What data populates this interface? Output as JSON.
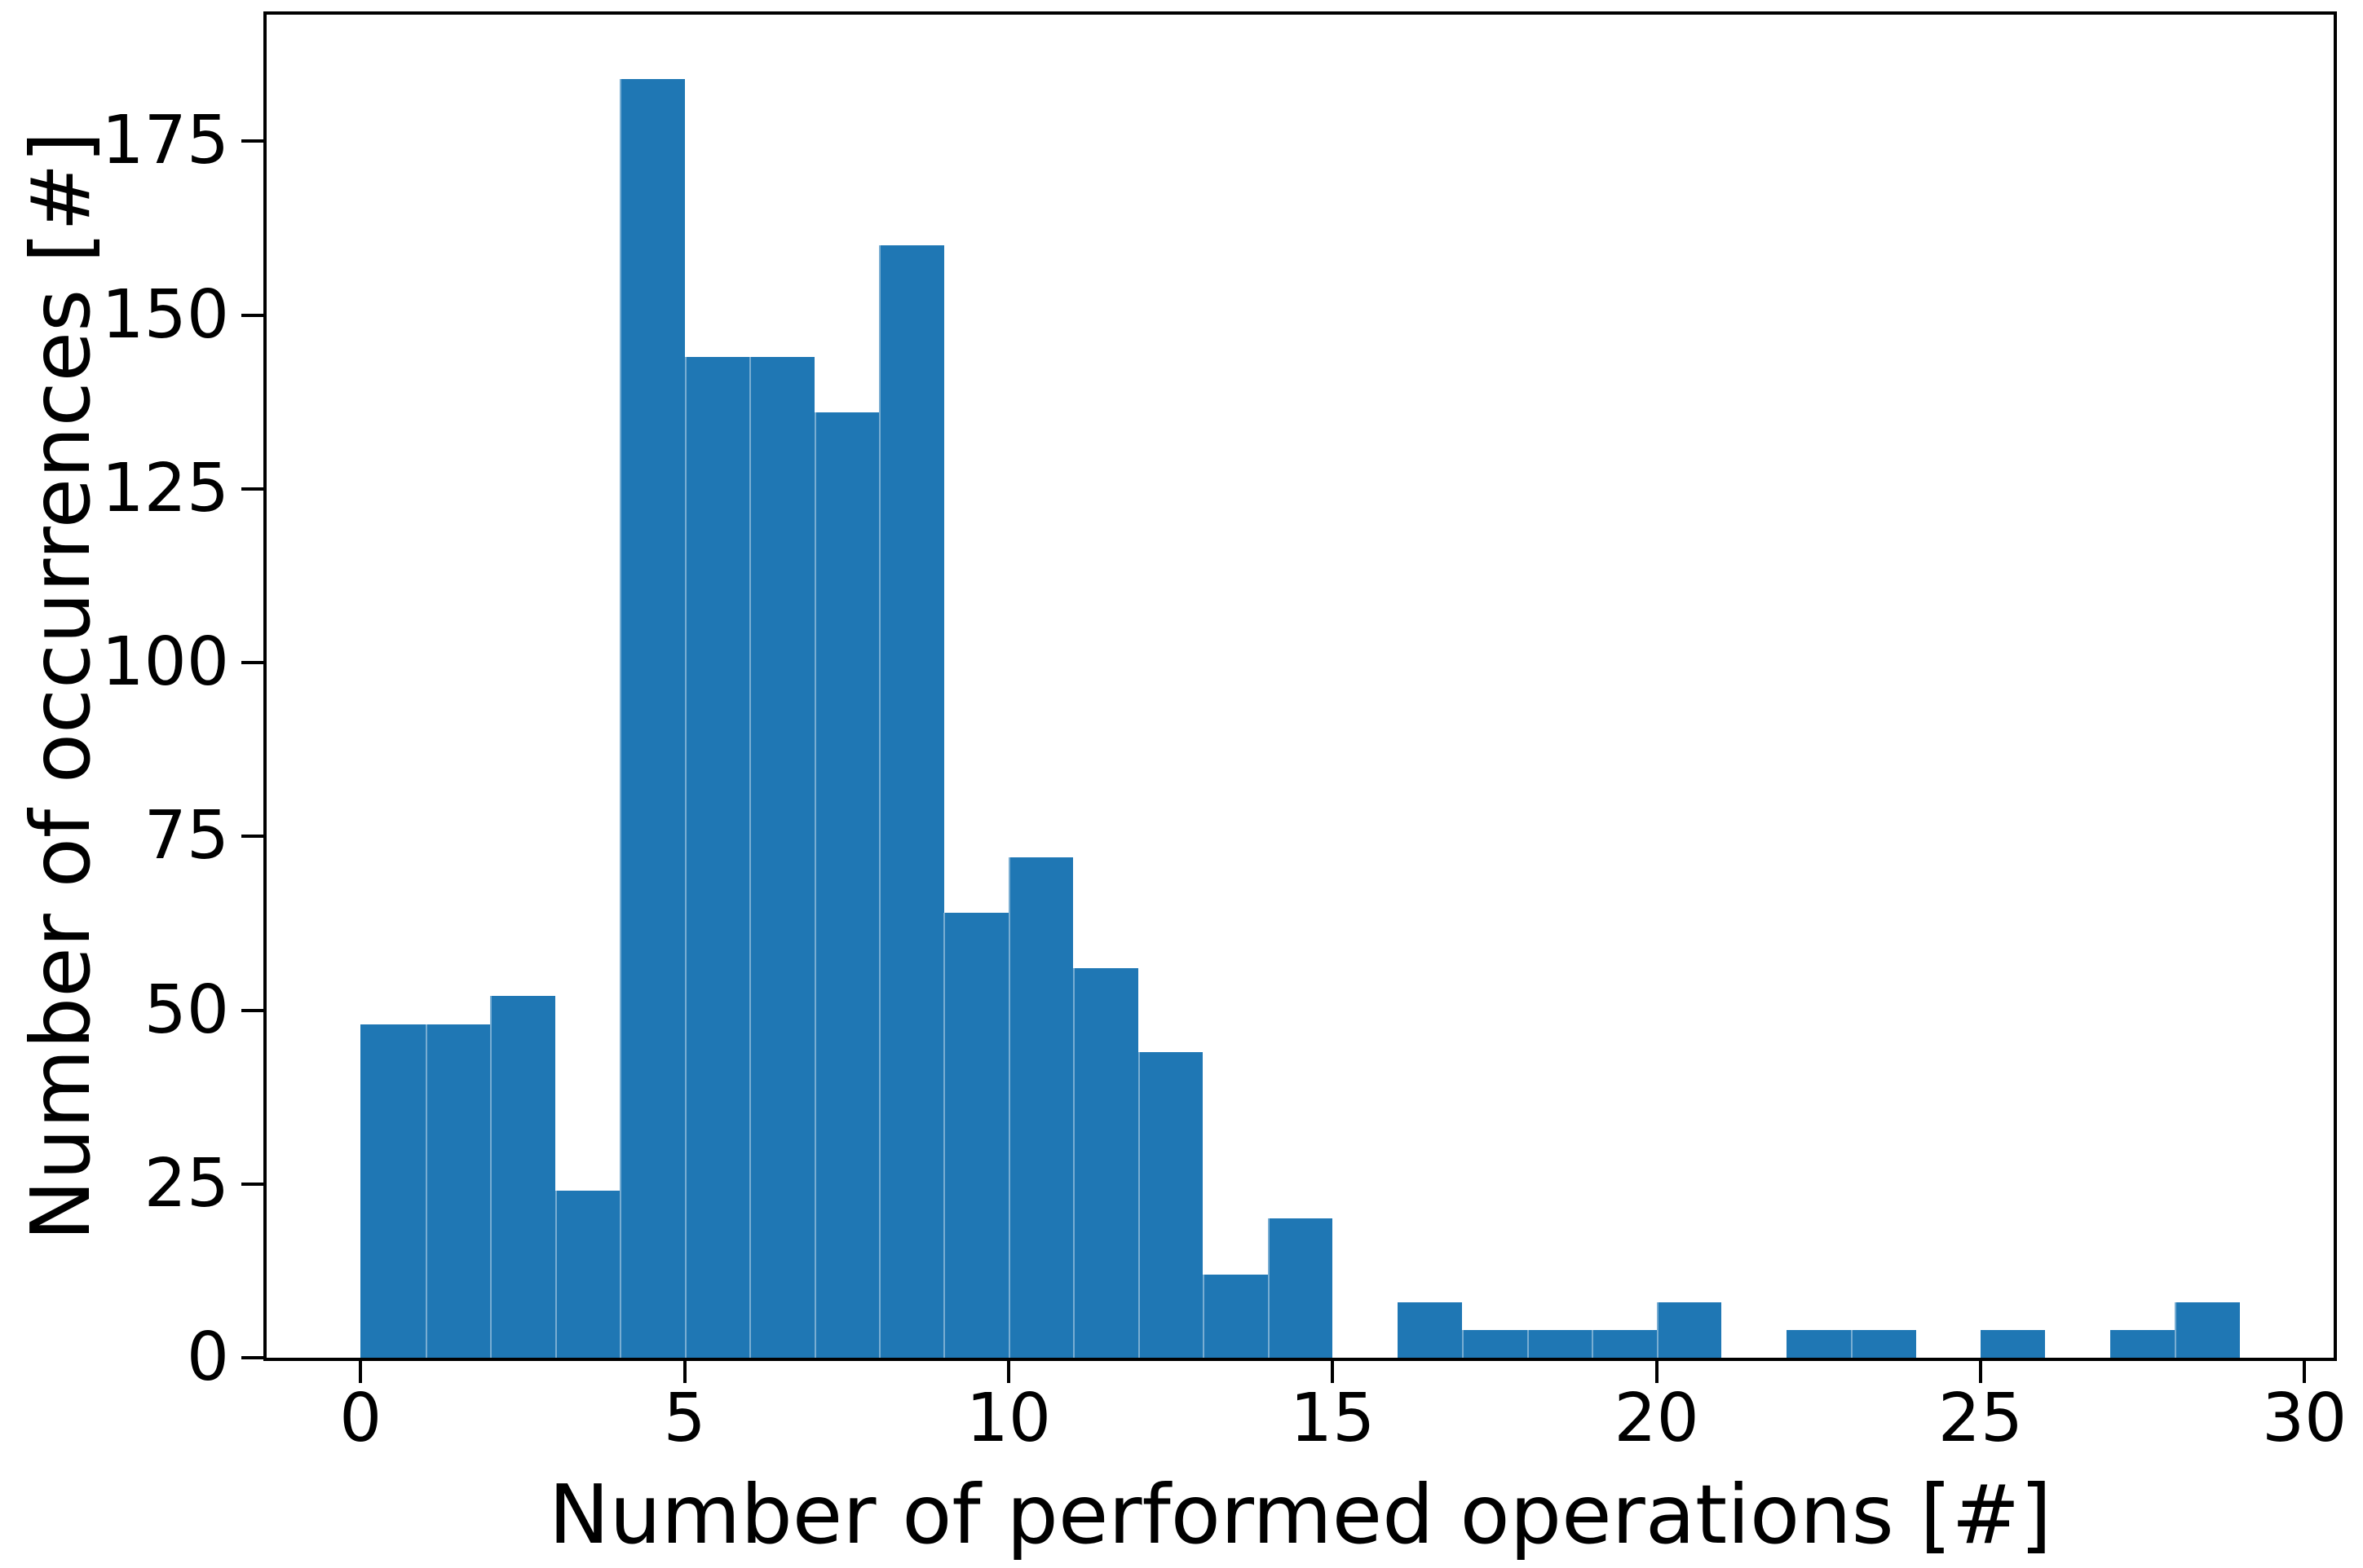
{
  "figure": {
    "background": "#ffffff",
    "text_color": "#000000"
  },
  "chart_data": {
    "type": "bar",
    "subtype": "histogram",
    "title": "",
    "xlabel": "Number of performed operations [#]",
    "ylabel": "Number of occurrences [#]",
    "bar_color": "#1f77b4",
    "bin_start": 0,
    "bin_width": 1,
    "values": [
      48,
      48,
      52,
      24,
      184,
      144,
      144,
      136,
      160,
      64,
      72,
      56,
      44,
      12,
      20,
      0,
      8,
      4,
      4,
      4,
      8,
      0,
      4,
      4,
      0,
      4,
      0,
      4,
      8,
      0
    ],
    "x_ticks": [
      0,
      5,
      10,
      15,
      20,
      25,
      30
    ],
    "y_ticks": [
      0,
      25,
      50,
      75,
      100,
      125,
      150,
      175
    ],
    "xlim": [
      -1.45,
      30.45
    ],
    "ylim": [
      0,
      193.2
    ],
    "grid": false,
    "legend": null
  }
}
